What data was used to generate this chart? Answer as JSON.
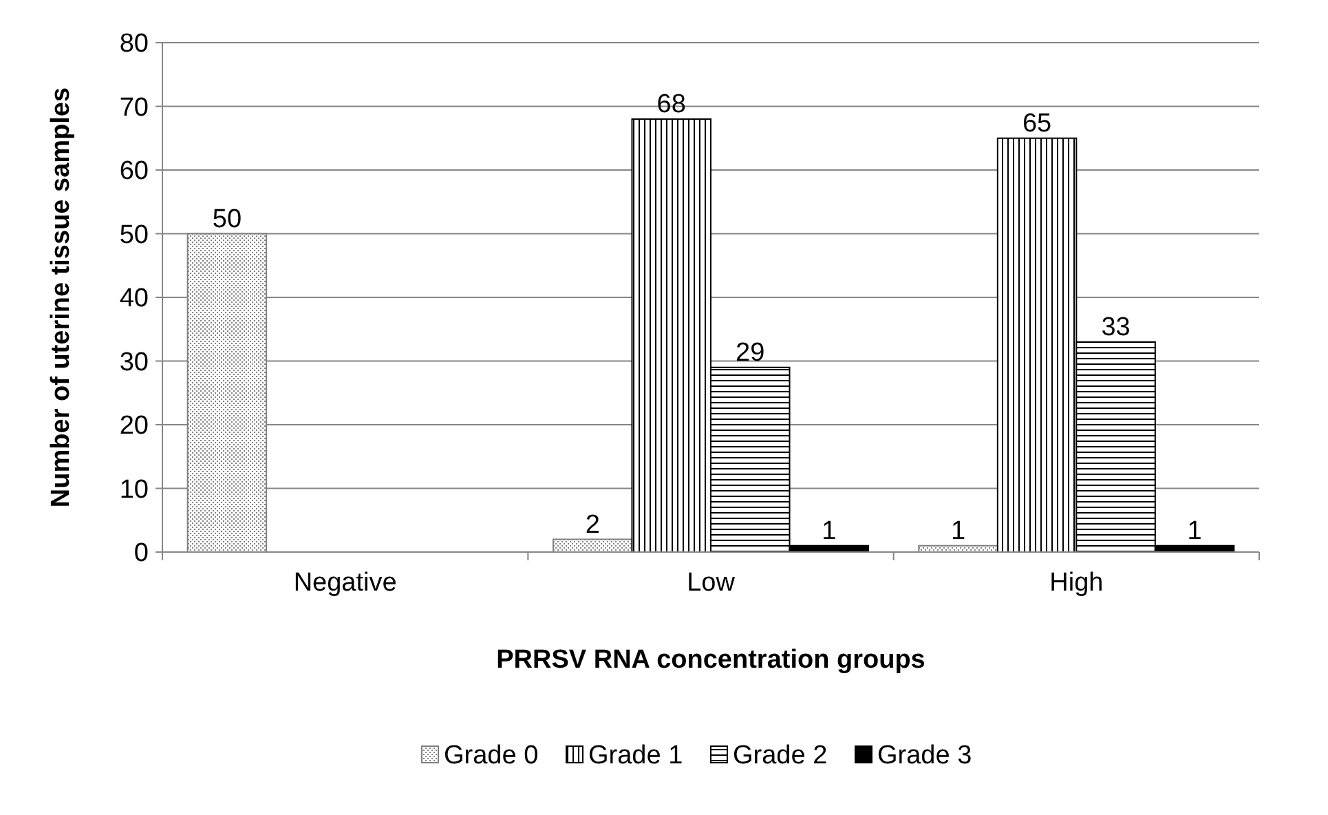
{
  "chart_data": {
    "type": "bar",
    "xlabel": "PRRSV RNA concentration groups",
    "ylabel": "Number of uterine tissue samples",
    "categories": [
      "Negative",
      "Low",
      "High"
    ],
    "series": [
      {
        "name": "Grade 0",
        "color": "#808080",
        "values": [
          50,
          2,
          1
        ],
        "value_labels": [
          "50",
          "2",
          "1"
        ]
      },
      {
        "name": "Grade 1",
        "color": "#000000",
        "values": [
          0,
          68,
          65
        ],
        "value_labels": [
          null,
          "68",
          "65"
        ]
      },
      {
        "name": "Grade 2",
        "color": "#000000",
        "values": [
          0,
          29,
          33
        ],
        "value_labels": [
          null,
          "29",
          "33"
        ]
      },
      {
        "name": "Grade 3",
        "color": "#000000",
        "values": [
          0,
          1,
          1
        ],
        "value_labels": [
          null,
          "1",
          "1"
        ]
      }
    ],
    "ylim": [
      0,
      80
    ],
    "yticks": [
      0,
      10,
      20,
      30,
      40,
      50,
      60,
      70,
      80
    ],
    "grid": "y",
    "legend": "bottom"
  }
}
